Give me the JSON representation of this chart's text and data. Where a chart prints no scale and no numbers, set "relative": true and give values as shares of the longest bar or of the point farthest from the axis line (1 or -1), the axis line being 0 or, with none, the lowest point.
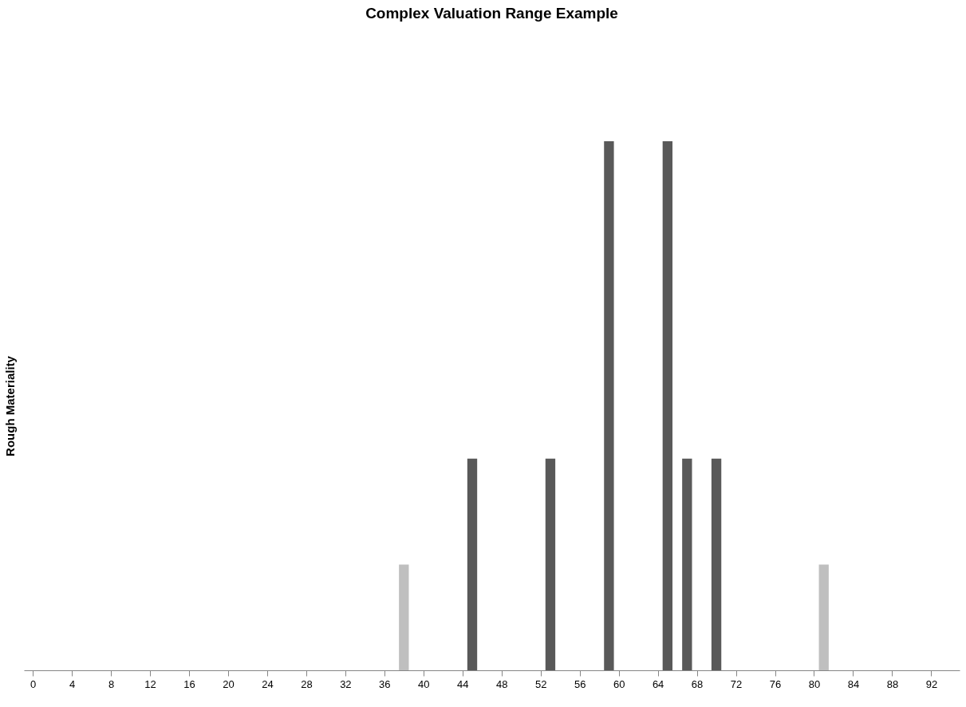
{
  "chart_data": {
    "type": "bar",
    "title": "Complex Valuation Range Example",
    "ylabel": "Rough Materiality",
    "x": [
      38,
      45,
      53,
      59,
      65,
      67,
      70,
      81
    ],
    "values": [
      0.2,
      0.4,
      0.4,
      1,
      1,
      0.4,
      0.4,
      0.2
    ],
    "colors": [
      "#bfbfbf",
      "#595959",
      "#595959",
      "#595959",
      "#595959",
      "#595959",
      "#595959",
      "#bfbfbf"
    ],
    "relative": true,
    "grid": false,
    "legend": false,
    "xlim": [
      -0.5,
      94.5
    ],
    "xticks": [
      0,
      4,
      8,
      12,
      16,
      20,
      24,
      28,
      32,
      36,
      40,
      44,
      48,
      52,
      56,
      60,
      64,
      68,
      72,
      76,
      80,
      84,
      88,
      92
    ]
  }
}
